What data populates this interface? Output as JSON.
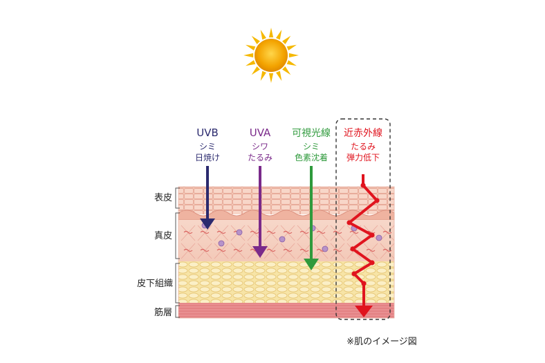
{
  "colors": {
    "uvb": "#2b2a6e",
    "uva": "#7a2a8a",
    "visible": "#2f9a3c",
    "near_infrared": "#e0141e",
    "epidermis": "#f3c4b2",
    "dermis": "#f6d3c4",
    "subcutaneous": "#f7e4a6",
    "muscle": "#e7888b",
    "sun_core": "#f2a100",
    "sun_rays": "#f5b800"
  },
  "rays": [
    {
      "name": "UVB",
      "effect_line1": "シミ",
      "effect_line2": "日焼け"
    },
    {
      "name": "UVA",
      "effect_line1": "シワ",
      "effect_line2": "たるみ"
    },
    {
      "name": "可視光線",
      "effect_line1": "シミ",
      "effect_line2": "色素沈着"
    },
    {
      "name": "近赤外線",
      "effect_line1": "たるみ",
      "effect_line2": "弾力低下"
    }
  ],
  "layers": {
    "epidermis": "表皮",
    "dermis": "真皮",
    "subcutaneous": "皮下組織",
    "muscle": "筋層"
  },
  "caption": "※肌のイメージ図",
  "icons": {
    "sun": "sun-icon",
    "arrow": "arrow-down-icon"
  }
}
